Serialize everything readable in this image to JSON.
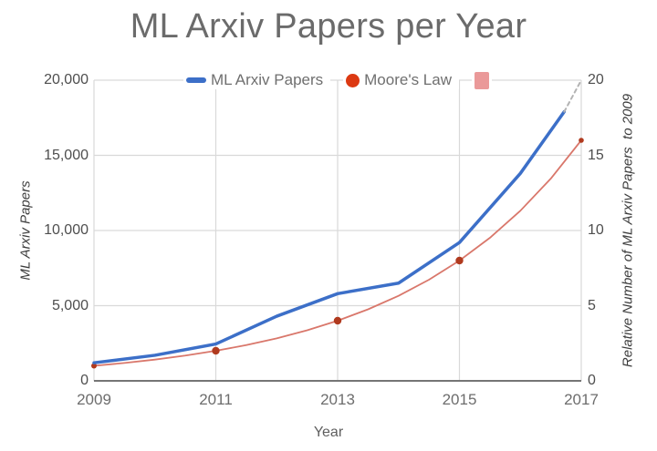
{
  "title": "ML Arxiv Papers per Year",
  "chart_data": {
    "type": "line",
    "title": "ML Arxiv Papers per Year",
    "xlabel": "Year",
    "ylabel_left": "ML Arxiv Papers",
    "ylabel_right": "Relative Number of ML Arxiv Papers  to 2009",
    "x_range": [
      2009,
      2017
    ],
    "ylim_left": [
      0,
      20000
    ],
    "ylim_right": [
      0,
      20
    ],
    "grid": true,
    "legend_position": "top",
    "style": {
      "grid_color": "#d9d9d9",
      "axis_color": "#757575",
      "background": "#ffffff",
      "title_color": "#6b6b6b"
    },
    "x_ticks": {
      "values": [
        2009,
        2011,
        2013,
        2015,
        2017
      ],
      "labels": [
        "2009",
        "2011",
        "2013",
        "2015",
        "2017"
      ]
    },
    "y_ticks_left": {
      "values": [
        0,
        5000,
        10000,
        15000,
        20000
      ],
      "labels": [
        "0",
        "5,000",
        "10,000",
        "15,000",
        "20,000"
      ]
    },
    "y_ticks_right": {
      "values": [
        0,
        5,
        10,
        15,
        20
      ],
      "labels": [
        "0",
        "5",
        "10",
        "15",
        "20"
      ]
    },
    "legend": [
      {
        "label": "ML Arxiv Papers",
        "swatch": "blue-dash",
        "color": "#3c6fc8"
      },
      {
        "label": "Moore's Law",
        "swatch": "red-dot",
        "color": "#dc3912"
      },
      {
        "label": "",
        "swatch": "pink-square",
        "color": "#ea9999"
      }
    ],
    "series": [
      {
        "name": "Moore's Law",
        "slug": "moores-law",
        "color": "#d9776b",
        "width": 1.8,
        "x": [
          2009,
          2009.5,
          2010,
          2010.5,
          2011,
          2011.5,
          2012,
          2012.5,
          2013,
          2013.5,
          2014,
          2014.5,
          2015,
          2015.5,
          2016,
          2016.5,
          2017
        ],
        "y": [
          1000,
          1189,
          1414,
          1682,
          2000,
          2378,
          2828,
          3364,
          4000,
          4757,
          5657,
          6727,
          8000,
          9514,
          11314,
          13454,
          16000
        ],
        "marker_color": "#b03a1e",
        "markers": [
          {
            "x": 2009,
            "y": 1000,
            "r": 3
          },
          {
            "x": 2011,
            "y": 2000,
            "r": 4.2
          },
          {
            "x": 2013,
            "y": 4000,
            "r": 4.2
          },
          {
            "x": 2015,
            "y": 8000,
            "r": 4.2
          },
          {
            "x": 2017,
            "y": 16000,
            "r": 2.8
          }
        ]
      },
      {
        "name": "ML Arxiv Papers",
        "slug": "ml-arxiv-papers",
        "color": "#3c6fc8",
        "width": 3.5,
        "x": [
          2009,
          2010,
          2011,
          2012,
          2013,
          2014,
          2015,
          2016,
          2016.72
        ],
        "y": [
          1200,
          1700,
          2450,
          4300,
          5800,
          6500,
          9200,
          13800,
          17900
        ]
      },
      {
        "name": "ML Arxiv Papers projection",
        "slug": "ml-projection",
        "color": "#b3b3b3",
        "width": 2,
        "dash": "4,4",
        "x": [
          2016.72,
          2017
        ],
        "y": [
          17900,
          20000
        ]
      }
    ]
  }
}
